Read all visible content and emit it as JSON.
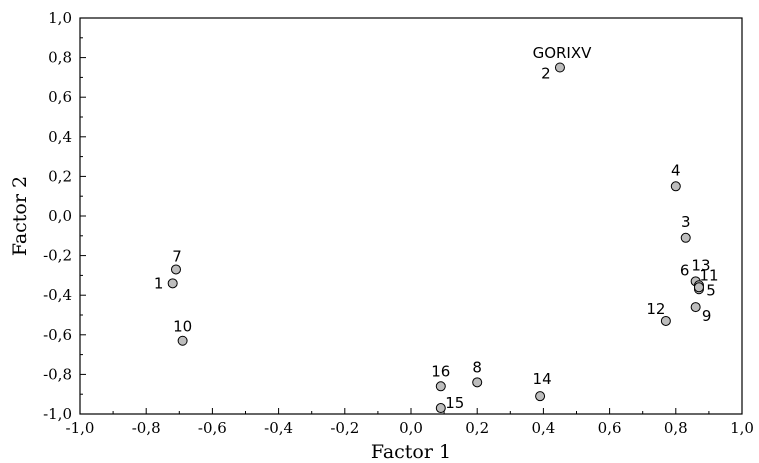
{
  "chart_data": {
    "type": "scatter",
    "title": "",
    "xlabel": "Factor 1",
    "ylabel": "Factor 2",
    "xlim": [
      -1.0,
      1.0
    ],
    "ylim": [
      -1.0,
      1.0
    ],
    "xticks": [
      "-1,0",
      "-0,8",
      "-0,6",
      "-0,4",
      "-0,2",
      "0,0",
      "0,2",
      "0,4",
      "0,6",
      "0,8",
      "1,0"
    ],
    "yticks": [
      "1,0",
      "0,8",
      "0,6",
      "0,4",
      "0,2",
      "0,0",
      "-0,2",
      "-0,4",
      "-0,6",
      "-0,8",
      "-1,0"
    ],
    "grid": false,
    "point_color": "#bdbdbd",
    "points": [
      {
        "label": "1",
        "x": -0.72,
        "y": -0.34
      },
      {
        "label": "2",
        "x": 0.45,
        "y": 0.75
      },
      {
        "label": "3",
        "x": 0.83,
        "y": -0.11
      },
      {
        "label": "4",
        "x": 0.8,
        "y": 0.15
      },
      {
        "label": "5",
        "x": 0.87,
        "y": -0.37
      },
      {
        "label": "6",
        "x": 0.86,
        "y": -0.33
      },
      {
        "label": "7",
        "x": -0.71,
        "y": -0.27
      },
      {
        "label": "8",
        "x": 0.2,
        "y": -0.84
      },
      {
        "label": "9",
        "x": 0.86,
        "y": -0.46
      },
      {
        "label": "10",
        "x": -0.69,
        "y": -0.63
      },
      {
        "label": "11",
        "x": 0.87,
        "y": -0.35
      },
      {
        "label": "12",
        "x": 0.77,
        "y": -0.53
      },
      {
        "label": "13",
        "x": 0.87,
        "y": -0.36
      },
      {
        "label": "14",
        "x": 0.39,
        "y": -0.91
      },
      {
        "label": "15",
        "x": 0.09,
        "y": -0.97
      },
      {
        "label": "16",
        "x": 0.09,
        "y": -0.86
      }
    ],
    "annotations": [
      {
        "text": "GORIXV"
      }
    ]
  }
}
